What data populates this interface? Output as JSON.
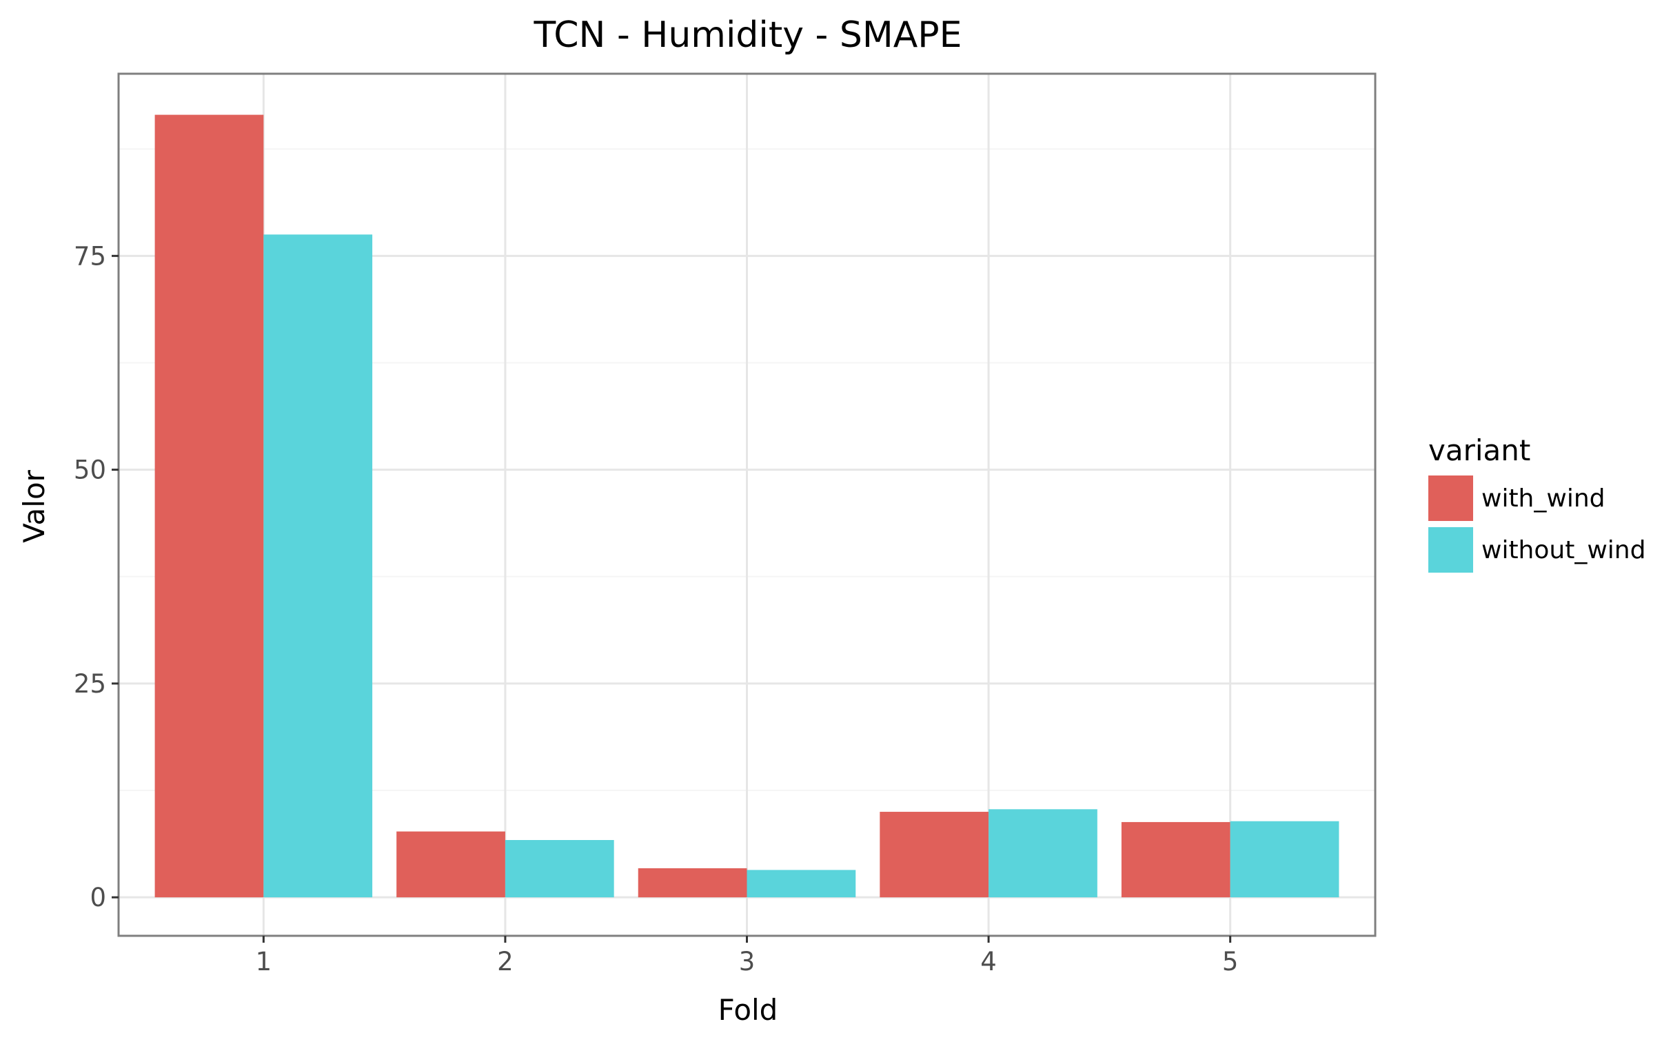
{
  "chart_data": {
    "type": "bar",
    "title": "TCN - Humidity - SMAPE",
    "xlabel": "Fold",
    "ylabel": "Valor",
    "categories": [
      "1",
      "2",
      "3",
      "4",
      "5"
    ],
    "series": [
      {
        "name": "with_wind",
        "color": "#E0605A",
        "values": [
          91.5,
          7.7,
          3.4,
          10.0,
          8.8
        ]
      },
      {
        "name": "without_wind",
        "color": "#5AD4DB",
        "values": [
          77.5,
          6.7,
          3.2,
          10.3,
          8.9
        ]
      }
    ],
    "yticks": [
      0,
      25,
      50,
      75
    ],
    "ylim": [
      -4.5,
      96.3
    ],
    "legend": {
      "title": "variant",
      "position": "right"
    },
    "grid": true,
    "colors": {
      "panel_border": "#7f7f7f",
      "grid_major": "#e6e6e6",
      "grid_minor": "#f5f5f5"
    }
  }
}
